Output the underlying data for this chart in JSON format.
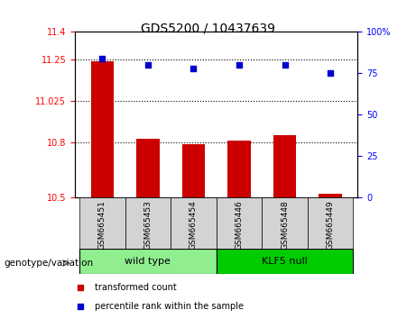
{
  "title": "GDS5200 / 10437639",
  "categories": [
    "GSM665451",
    "GSM665453",
    "GSM665454",
    "GSM665446",
    "GSM665448",
    "GSM665449"
  ],
  "bar_values": [
    11.24,
    10.82,
    10.79,
    10.81,
    10.84,
    10.52
  ],
  "scatter_values": [
    84,
    80,
    78,
    80,
    80,
    75
  ],
  "ylim_left": [
    10.5,
    11.4
  ],
  "ylim_right": [
    0,
    100
  ],
  "yticks_left": [
    10.5,
    10.8,
    11.025,
    11.25,
    11.4
  ],
  "yticks_left_labels": [
    "10.5",
    "10.8",
    "11.025",
    "11.25",
    "11.4"
  ],
  "yticks_right": [
    0,
    25,
    50,
    75,
    100
  ],
  "yticks_right_labels": [
    "0",
    "25",
    "50",
    "75",
    "100%"
  ],
  "hlines": [
    11.25,
    11.025,
    10.8
  ],
  "bar_color": "#cc0000",
  "scatter_color": "#0000cc",
  "bar_width": 0.5,
  "group1_label": "wild type",
  "group2_label": "KLF5 null",
  "group1_color": "#90ee90",
  "group2_color": "#00cc00",
  "group1_indices": [
    0,
    1,
    2
  ],
  "group2_indices": [
    3,
    4,
    5
  ],
  "genotype_label": "genotype/variation",
  "legend_bar_label": "transformed count",
  "legend_scatter_label": "percentile rank within the sample",
  "axis_bg": "#d3d3d3",
  "fig_bg": "#ffffff"
}
